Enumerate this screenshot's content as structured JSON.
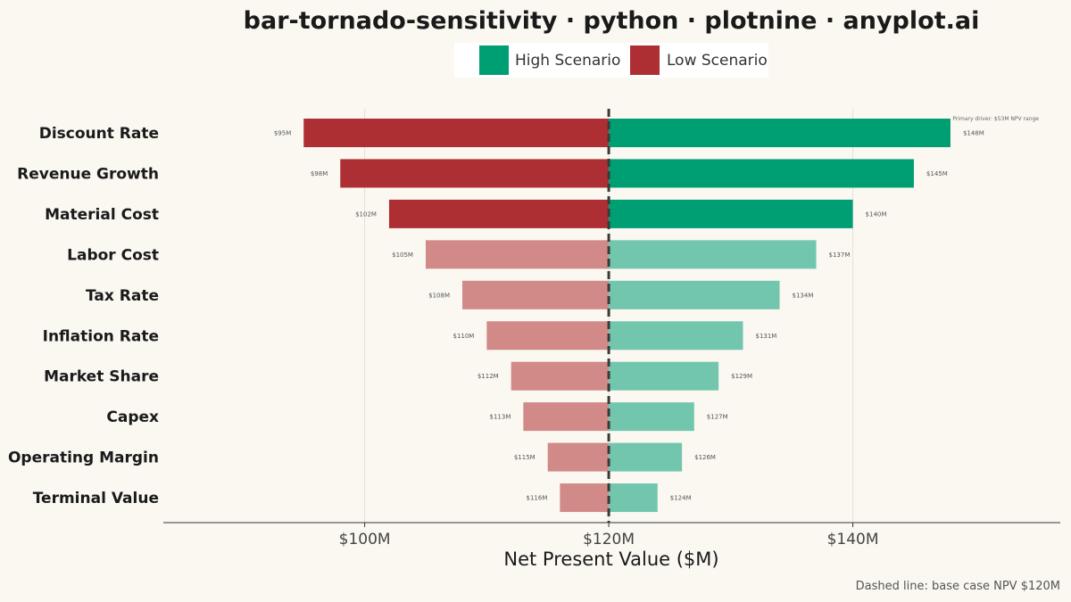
{
  "chart_data": {
    "type": "bar",
    "subtype": "tornado",
    "title": "bar-tornado-sensitivity · python · plotnine · anyplot.ai",
    "xlabel": "Net Present Value ($M)",
    "ylabel": "",
    "base_case": 120,
    "xlim": [
      83.5,
      157
    ],
    "x_ticks": [
      100,
      120,
      140
    ],
    "x_tick_labels": [
      "$100M",
      "$120M",
      "$140M"
    ],
    "grid": "vertical major",
    "legend_position": "top",
    "categories": [
      "Discount Rate",
      "Revenue Growth",
      "Material Cost",
      "Labor Cost",
      "Tax Rate",
      "Inflation Rate",
      "Market Share",
      "Capex",
      "Operating Margin",
      "Terminal Value"
    ],
    "series": [
      {
        "name": "High Scenario",
        "values": [
          148,
          145,
          140,
          137,
          134,
          131,
          129,
          127,
          126,
          124
        ],
        "labels": [
          "$148M",
          "$145M",
          "$140M",
          "$137M",
          "$134M",
          "$131M",
          "$129M",
          "$127M",
          "$126M",
          "$124M"
        ]
      },
      {
        "name": "Low Scenario",
        "values": [
          95,
          98,
          102,
          105,
          108,
          110,
          112,
          113,
          115,
          116
        ],
        "labels": [
          "$95M",
          "$98M",
          "$102M",
          "$105M",
          "$108M",
          "$110M",
          "$112M",
          "$113M",
          "$115M",
          "$116M"
        ]
      }
    ],
    "annotation": "Primary driver: $53M NPV range",
    "caption": "Dashed line: base case NPV $120M",
    "colors": {
      "high": "#009E73",
      "high_light": "#72C6AD",
      "low": "#AD2F33",
      "low_light": "#D18A87",
      "background": "#FAF8F1"
    }
  }
}
